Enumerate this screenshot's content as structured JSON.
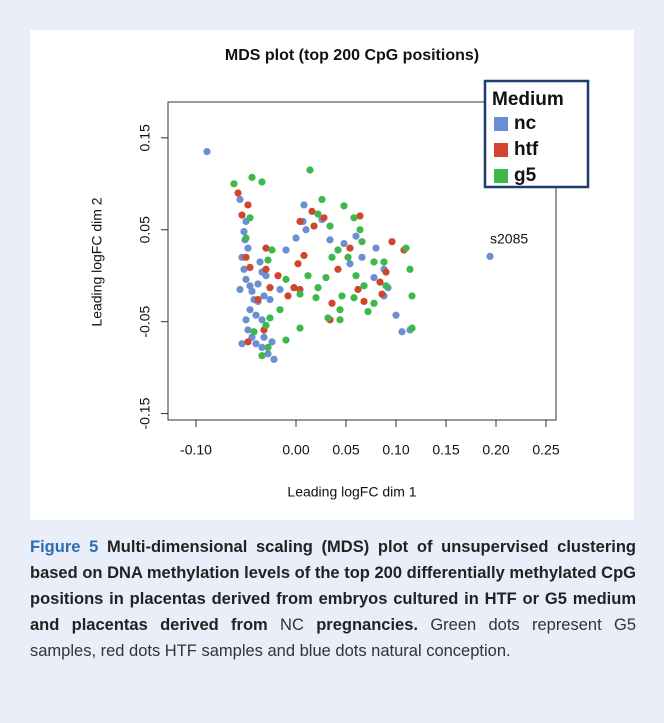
{
  "chart_data": {
    "type": "scatter",
    "title": "MDS plot (top 200 CpG positions)",
    "x_label": "Leading logFC dim 1",
    "y_label": "Leading logFC dim 2",
    "xlim": [
      -0.128,
      0.26
    ],
    "ylim": [
      -0.157,
      0.189
    ],
    "xticks": [
      {
        "value": -0.1,
        "label": "-0.10"
      },
      {
        "value": 0,
        "label": "0.00"
      },
      0.05,
      {
        "value": 0.1,
        "label": "0.10"
      },
      0.15,
      {
        "value": 0.2,
        "label": "0.20"
      },
      0.25
    ],
    "yticks": [
      -0.15,
      -0.05,
      0.05,
      0.15
    ],
    "legend_title": "Medium",
    "legend_position": "upper right",
    "annotation": "s2085",
    "series": [
      {
        "name": "nc",
        "color": "#6b8fd2",
        "x": [
          -0.089,
          -0.056,
          -0.05,
          -0.052,
          -0.051,
          -0.048,
          -0.054,
          -0.052,
          -0.05,
          -0.046,
          -0.044,
          -0.042,
          -0.038,
          -0.046,
          -0.04,
          -0.034,
          -0.048,
          -0.044,
          -0.04,
          -0.034,
          -0.028,
          -0.022,
          -0.032,
          -0.024,
          -0.036,
          -0.034,
          -0.03,
          -0.038,
          -0.032,
          -0.026,
          -0.016,
          -0.01,
          0.008,
          0.01,
          0,
          0.034,
          0.048,
          0.06,
          0.066,
          0.078,
          0.08,
          0.088,
          0.088,
          0.092,
          0.1,
          0.106,
          0.114,
          0.054,
          0.194,
          0.007,
          0.026,
          -0.056,
          -0.05,
          -0.054
        ],
        "values": [
          0.135,
          0.083,
          0.059,
          0.048,
          0.039,
          0.03,
          0.02,
          0.007,
          -0.004,
          -0.011,
          -0.017,
          -0.026,
          -0.028,
          -0.037,
          -0.043,
          -0.048,
          -0.059,
          -0.067,
          -0.074,
          -0.078,
          -0.085,
          -0.091,
          -0.067,
          -0.072,
          0.015,
          0.004,
          0,
          -0.009,
          -0.022,
          -0.026,
          -0.015,
          0.028,
          0.077,
          0.05,
          0.041,
          0.039,
          0.035,
          0.043,
          0.02,
          -0.002,
          0.03,
          0.007,
          -0.022,
          -0.013,
          -0.043,
          -0.061,
          -0.059,
          0.013,
          0.021,
          0.059,
          0.061,
          -0.015,
          -0.048,
          -0.074
        ]
      },
      {
        "name": "htf",
        "color": "#d2452d",
        "x": [
          -0.058,
          -0.054,
          -0.048,
          -0.05,
          -0.046,
          -0.03,
          -0.03,
          -0.026,
          -0.038,
          -0.032,
          -0.048,
          0.002,
          0.004,
          0.008,
          0.016,
          0.018,
          0.028,
          0.004,
          -0.002,
          0.042,
          0.036,
          0.034,
          0.062,
          0.068,
          0.09,
          0.084,
          0.086,
          0.096,
          0.108,
          -0.008,
          -0.018,
          0.064,
          0.054
        ],
        "values": [
          0.09,
          0.066,
          0.077,
          0.02,
          0.009,
          0.03,
          0.007,
          -0.013,
          -0.026,
          -0.059,
          -0.072,
          0.013,
          0.059,
          0.022,
          0.07,
          0.054,
          0.063,
          -0.015,
          -0.013,
          0.007,
          -0.03,
          -0.048,
          -0.015,
          -0.028,
          0.004,
          -0.007,
          -0.02,
          0.037,
          0.028,
          -0.022,
          0,
          0.065,
          0.03
        ]
      },
      {
        "name": "g5",
        "color": "#3cb94a",
        "x": [
          -0.062,
          -0.044,
          -0.034,
          0.014,
          -0.046,
          -0.05,
          -0.028,
          -0.024,
          0.026,
          0.022,
          0.034,
          0.048,
          0.058,
          0.064,
          0.036,
          0.042,
          0.066,
          0.078,
          0.052,
          0.088,
          0.11,
          0.114,
          0.116,
          0.116,
          0.072,
          0.058,
          0.044,
          0.044,
          0.032,
          0.03,
          0.022,
          0.012,
          0.004,
          -0.01,
          -0.016,
          -0.026,
          -0.03,
          -0.042,
          -0.01,
          -0.028,
          -0.034,
          0.004,
          0.02,
          0.046,
          0.06,
          0.09,
          0.078,
          0.068
        ],
        "values": [
          0.1,
          0.107,
          0.102,
          0.115,
          0.063,
          0.041,
          0.017,
          0.028,
          0.083,
          0.067,
          0.054,
          0.076,
          0.063,
          0.05,
          0.02,
          0.028,
          0.037,
          0.015,
          0.02,
          0.015,
          0.03,
          0.007,
          -0.022,
          -0.057,
          -0.039,
          -0.024,
          -0.048,
          -0.037,
          -0.046,
          -0.002,
          -0.013,
          0,
          -0.02,
          -0.004,
          -0.037,
          -0.046,
          -0.054,
          -0.061,
          -0.07,
          -0.078,
          -0.087,
          -0.057,
          -0.024,
          -0.022,
          0,
          -0.011,
          -0.03,
          -0.011
        ]
      }
    ]
  },
  "caption": {
    "label": "Figure 5",
    "bold": "Multi-dimensional scaling (MDS) plot of unsupervised clustering based on DNA methylation levels of the top 200 differentially methylated CpG positions in placentas derived from embryos cultured in HTF or G5 medium and placentas derived from",
    "plain": "NC",
    "bold_end": "pregnancies.",
    "text": "Green dots represent G5 samples, red dots HTF samples and blue dots natural conception."
  }
}
